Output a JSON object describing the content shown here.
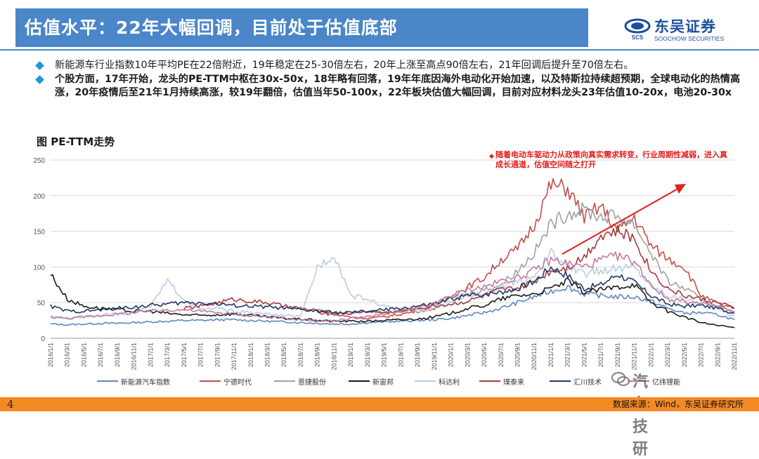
{
  "header": {
    "title": "估值水平：22年大幅回调，目前处于估值底部",
    "logo_cn": "东吴证券",
    "logo_en": "SOOCHOW SECURITIES",
    "logo_mark_text": "SCS"
  },
  "bullets": [
    "新能源车行业指数10年平均PE在22倍附近，19年稳定在25-30倍左右，20年上涨至高点90倍左右，21年回调后提升至70倍左右。",
    "个股方面，17年开始，龙头的PE-TTM中枢在30x-50x，18年略有回落，19年年底因海外电动化开始加速，以及特斯拉持续超预期，全球电动化的热情高涨，20年疫情后至21年1月持续高涨，较19年翻倍，估值当年50-100x，22年板块估值大幅回调，目前对应材料龙头23年估值10-20x，电池20-30x"
  ],
  "chart_label": "图   PE-TTM走势",
  "annotation": "随着电动车驱动力从政策向真实需求转变，行业周期性减弱，进入真成长通道，估值空间随之打开",
  "footer": {
    "page": "4",
    "source": "数据来源：Wind，东吴证券研究所"
  },
  "watermark": "汽车技研",
  "colors": {
    "title_bg": "#4a86c8",
    "footer_bg": "#f58a23",
    "bullet": "#1e98d7",
    "annotation": "#e02020"
  },
  "chart_data": {
    "type": "line",
    "title": "PE-TTM走势",
    "ylim": [
      0,
      250
    ],
    "yticks": [
      "0",
      "50",
      "100",
      "150",
      "200",
      "250"
    ],
    "x": [
      "2016/1/1",
      "2016/3/1",
      "2016/5/1",
      "2016/7/1",
      "2016/9/1",
      "2016/11/1",
      "2017/1/1",
      "2017/3/1",
      "2017/5/1",
      "2017/7/1",
      "2017/9/1",
      "2017/11/1",
      "2018/1/1",
      "2018/3/1",
      "2018/5/1",
      "2018/7/1",
      "2018/9/1",
      "2018/11/1",
      "2019/1/1",
      "2019/3/1",
      "2019/5/1",
      "2019/7/1",
      "2019/9/1",
      "2019/11/1",
      "2020/1/1",
      "2020/3/1",
      "2020/5/1",
      "2020/7/1",
      "2020/9/1",
      "2020/11/1",
      "2021/1/1",
      "2021/3/1",
      "2021/5/1",
      "2021/7/1",
      "2021/9/1",
      "2021/11/1",
      "2022/1/1",
      "2022/3/1",
      "2022/5/1",
      "2022/7/1",
      "2022/9/1",
      "2022/11/1"
    ],
    "series": [
      {
        "name": "新能源汽车指数",
        "color": "#5b87c5",
        "values": [
          20,
          19,
          20,
          21,
          21,
          22,
          23,
          24,
          25,
          25,
          26,
          26,
          25,
          24,
          23,
          22,
          21,
          20,
          20,
          22,
          23,
          24,
          25,
          26,
          28,
          32,
          36,
          42,
          50,
          58,
          66,
          72,
          62,
          60,
          58,
          58,
          52,
          42,
          35,
          36,
          33,
          26
        ]
      },
      {
        "name": "宁德时代",
        "color": "#c0504d",
        "values": [
          null,
          null,
          null,
          null,
          null,
          null,
          null,
          null,
          null,
          null,
          null,
          null,
          null,
          null,
          null,
          null,
          36,
          33,
          30,
          28,
          30,
          34,
          38,
          42,
          58,
          72,
          85,
          110,
          125,
          160,
          215,
          210,
          170,
          185,
          150,
          170,
          130,
          112,
          100,
          60,
          48,
          42
        ]
      },
      {
        "name": "恩捷股份",
        "color": "#a0a0a0",
        "values": [
          null,
          null,
          null,
          null,
          null,
          null,
          null,
          null,
          null,
          null,
          null,
          null,
          null,
          null,
          null,
          null,
          40,
          35,
          35,
          38,
          36,
          38,
          42,
          48,
          58,
          62,
          68,
          75,
          95,
          120,
          160,
          175,
          180,
          170,
          172,
          160,
          120,
          80,
          70,
          55,
          45,
          38
        ]
      },
      {
        "name": "新宙邦",
        "color": "#1a1a1a",
        "values": [
          90,
          55,
          45,
          42,
          40,
          38,
          38,
          35,
          33,
          32,
          33,
          34,
          32,
          30,
          28,
          27,
          25,
          24,
          24,
          24,
          25,
          26,
          27,
          30,
          35,
          42,
          46,
          55,
          60,
          62,
          70,
          80,
          65,
          68,
          72,
          76,
          50,
          38,
          30,
          22,
          18,
          15
        ]
      },
      {
        "name": "科达利",
        "color": "#b9cde5",
        "values": [
          30,
          28,
          30,
          32,
          34,
          36,
          45,
          80,
          55,
          40,
          42,
          38,
          36,
          34,
          32,
          30,
          100,
          118,
          60,
          55,
          45,
          40,
          38,
          42,
          52,
          60,
          62,
          72,
          78,
          88,
          120,
          100,
          90,
          95,
          98,
          100,
          75,
          60,
          55,
          50,
          42,
          30
        ]
      },
      {
        "name": "璞泰来",
        "color": "#a63c3c",
        "values": [
          null,
          null,
          null,
          null,
          null,
          null,
          null,
          null,
          42,
          45,
          50,
          55,
          52,
          50,
          45,
          42,
          38,
          36,
          35,
          38,
          36,
          38,
          42,
          45,
          48,
          52,
          60,
          68,
          70,
          80,
          95,
          100,
          115,
          145,
          150,
          140,
          95,
          70,
          60,
          55,
          50,
          42
        ]
      },
      {
        "name": "汇川技术",
        "color": "#1f3864",
        "values": [
          45,
          38,
          38,
          40,
          42,
          44,
          46,
          48,
          50,
          50,
          48,
          46,
          45,
          44,
          42,
          40,
          38,
          36,
          36,
          38,
          40,
          42,
          45,
          48,
          55,
          60,
          62,
          65,
          70,
          80,
          100,
          88,
          70,
          75,
          90,
          78,
          60,
          48,
          45,
          46,
          42,
          35
        ]
      },
      {
        "name": "亿纬锂能",
        "color": "#c27ba0",
        "values": [
          30,
          28,
          30,
          32,
          34,
          36,
          38,
          40,
          40,
          38,
          36,
          34,
          32,
          30,
          28,
          26,
          25,
          24,
          28,
          30,
          34,
          38,
          42,
          48,
          60,
          68,
          72,
          80,
          85,
          95,
          110,
          105,
          100,
          110,
          115,
          108,
          75,
          55,
          52,
          48,
          45,
          36
        ]
      }
    ]
  }
}
